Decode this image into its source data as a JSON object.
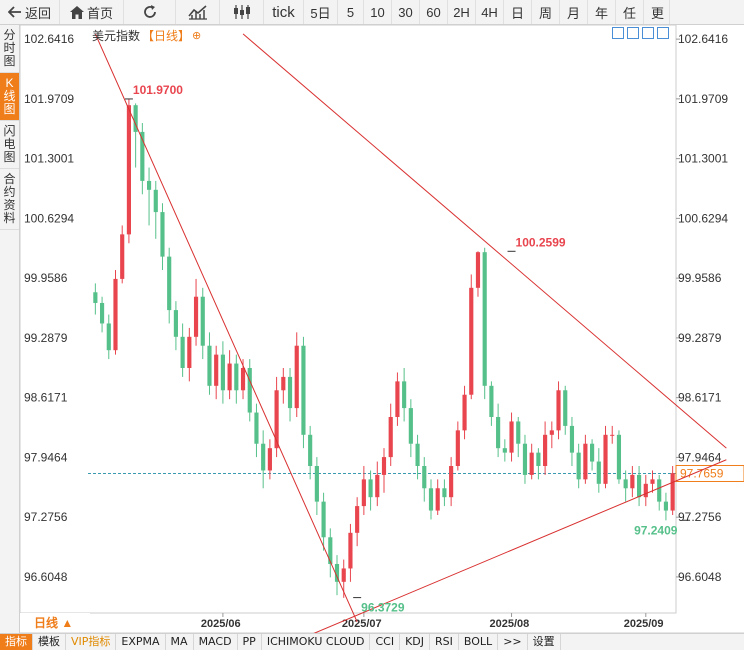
{
  "toolbar": {
    "back_label": "返回",
    "home_label": "首页",
    "tick_label": "tick",
    "periods": [
      "5日",
      "5",
      "10",
      "30",
      "60",
      "2H",
      "4H",
      "日",
      "周",
      "月",
      "年",
      "任"
    ],
    "more_label": "更"
  },
  "sidebar": {
    "items": [
      {
        "label": "分时图",
        "active": false
      },
      {
        "label": "K线图",
        "active": true
      },
      {
        "label": "闪电图",
        "active": false
      },
      {
        "label": "合约资料",
        "active": false
      }
    ]
  },
  "chart_header": {
    "name": "美元指数",
    "period": "【日线】",
    "settings_glyph": "⊕"
  },
  "period_selector": "日线 ▲",
  "bottom_tabs": [
    "指标",
    "模板",
    "VIP指标",
    "EXPMA",
    "MA",
    "MACD",
    "PP",
    "ICHIMOKU CLOUD",
    "CCI",
    "KDJ",
    "RSI",
    "BOLL",
    ">>",
    "设置"
  ],
  "colors": {
    "up": "#e8454e",
    "down": "#56c08a",
    "trendline": "#d93030",
    "accent": "#ef7d1a",
    "current_line": "#3a9bb0"
  },
  "chart_data": {
    "type": "candlestick",
    "ylim": [
      96.2,
      102.8
    ],
    "y_ticks": [
      "102.6416",
      "101.9709",
      "101.3001",
      "100.6294",
      "99.9586",
      "99.2879",
      "98.6171",
      "97.9464",
      "97.2756",
      "96.6048"
    ],
    "y_tick_values": [
      102.6416,
      101.9709,
      101.3001,
      100.6294,
      99.9586,
      99.2879,
      98.6171,
      97.9464,
      97.2756,
      96.6048
    ],
    "x_ticks": [
      "2025/06",
      "2025/07",
      "2025/08",
      "2025/09"
    ],
    "x_tick_index": [
      19,
      40,
      62,
      82
    ],
    "current_price": "97.7659",
    "annotations": [
      {
        "text": "101.9700",
        "index": 5,
        "value": 101.97
      },
      {
        "text": "100.2599",
        "index": 62,
        "value": 100.2599
      },
      {
        "text": "96.3729",
        "index": 39,
        "value": 96.3729
      },
      {
        "text": "97.2409",
        "index": 88,
        "value": 97.2409
      }
    ],
    "candles": [
      [
        99.8,
        99.68,
        99.9,
        99.55
      ],
      [
        99.68,
        99.45,
        99.75,
        99.35
      ],
      [
        99.45,
        99.15,
        99.55,
        99.05
      ],
      [
        99.15,
        99.95,
        100.05,
        99.1
      ],
      [
        99.95,
        100.45,
        100.55,
        99.9
      ],
      [
        100.45,
        101.9,
        101.97,
        100.35
      ],
      [
        101.9,
        101.6,
        101.92,
        101.2
      ],
      [
        101.6,
        101.05,
        101.7,
        100.9
      ],
      [
        101.05,
        100.95,
        101.2,
        100.55
      ],
      [
        100.95,
        100.7,
        101.05,
        100.4
      ],
      [
        100.7,
        100.2,
        100.8,
        100.05
      ],
      [
        100.2,
        99.6,
        100.3,
        99.45
      ],
      [
        99.6,
        99.3,
        99.7,
        99.15
      ],
      [
        99.3,
        98.95,
        99.45,
        98.85
      ],
      [
        98.95,
        99.3,
        99.4,
        98.8
      ],
      [
        99.3,
        99.75,
        99.95,
        99.2
      ],
      [
        99.75,
        99.2,
        99.85,
        99.05
      ],
      [
        99.2,
        98.75,
        99.35,
        98.65
      ],
      [
        98.75,
        99.1,
        99.2,
        98.6
      ],
      [
        99.1,
        98.7,
        99.25,
        98.55
      ],
      [
        98.7,
        99.0,
        99.15,
        98.6
      ],
      [
        99.0,
        98.7,
        99.1,
        98.55
      ],
      [
        98.7,
        98.95,
        99.05,
        98.6
      ],
      [
        98.95,
        98.45,
        99.05,
        98.35
      ],
      [
        98.45,
        98.1,
        98.55,
        97.95
      ],
      [
        98.1,
        97.8,
        98.25,
        97.6
      ],
      [
        97.8,
        98.05,
        98.15,
        97.7
      ],
      [
        98.05,
        98.7,
        98.85,
        97.95
      ],
      [
        98.7,
        98.85,
        98.95,
        98.55
      ],
      [
        98.85,
        98.5,
        98.95,
        98.35
      ],
      [
        98.5,
        99.2,
        99.35,
        98.4
      ],
      [
        99.2,
        98.2,
        99.3,
        98.05
      ],
      [
        98.2,
        97.85,
        98.3,
        97.7
      ],
      [
        97.85,
        97.45,
        97.95,
        97.3
      ],
      [
        97.45,
        97.05,
        97.55,
        96.9
      ],
      [
        97.05,
        96.75,
        97.15,
        96.6
      ],
      [
        96.75,
        96.55,
        96.85,
        96.4
      ],
      [
        96.55,
        96.7,
        96.8,
        96.37
      ],
      [
        96.7,
        97.1,
        97.2,
        96.55
      ],
      [
        97.1,
        97.4,
        97.5,
        96.95
      ],
      [
        97.4,
        97.7,
        97.85,
        97.3
      ],
      [
        97.7,
        97.5,
        97.8,
        97.35
      ],
      [
        97.5,
        97.75,
        97.9,
        97.4
      ],
      [
        97.75,
        97.95,
        98.05,
        97.55
      ],
      [
        97.95,
        98.4,
        98.55,
        97.85
      ],
      [
        98.4,
        98.8,
        98.9,
        98.3
      ],
      [
        98.8,
        98.5,
        98.95,
        98.35
      ],
      [
        98.5,
        98.1,
        98.6,
        97.95
      ],
      [
        98.1,
        97.85,
        98.2,
        97.7
      ],
      [
        97.85,
        97.6,
        97.95,
        97.45
      ],
      [
        97.6,
        97.35,
        97.7,
        97.25
      ],
      [
        97.35,
        97.6,
        97.7,
        97.3
      ],
      [
        97.6,
        97.5,
        97.7,
        97.4
      ],
      [
        97.5,
        97.85,
        97.95,
        97.4
      ],
      [
        97.85,
        98.25,
        98.35,
        97.8
      ],
      [
        98.25,
        98.65,
        98.75,
        98.15
      ],
      [
        98.65,
        99.85,
        100.0,
        98.6
      ],
      [
        99.85,
        100.25,
        100.26,
        99.75
      ],
      [
        100.25,
        98.75,
        100.3,
        98.6
      ],
      [
        98.75,
        98.4,
        98.8,
        98.3
      ],
      [
        98.4,
        98.05,
        98.55,
        97.95
      ],
      [
        98.05,
        98.0,
        98.15,
        97.9
      ],
      [
        98.0,
        98.35,
        98.45,
        97.9
      ],
      [
        98.35,
        98.1,
        98.4,
        97.95
      ],
      [
        98.1,
        97.75,
        98.2,
        97.65
      ],
      [
        97.75,
        98.0,
        98.1,
        97.7
      ],
      [
        98.0,
        97.85,
        98.05,
        97.7
      ],
      [
        97.85,
        98.2,
        98.35,
        97.75
      ],
      [
        98.2,
        98.25,
        98.35,
        98.05
      ],
      [
        98.25,
        98.7,
        98.8,
        98.15
      ],
      [
        98.7,
        98.3,
        98.75,
        98.2
      ],
      [
        98.3,
        98.0,
        98.4,
        97.85
      ],
      [
        98.0,
        97.7,
        98.1,
        97.6
      ],
      [
        97.7,
        98.1,
        98.2,
        97.65
      ],
      [
        98.1,
        97.9,
        98.15,
        97.8
      ],
      [
        97.9,
        97.65,
        98.05,
        97.55
      ],
      [
        97.65,
        98.2,
        98.3,
        97.6
      ],
      [
        98.2,
        98.2,
        98.3,
        98.1
      ],
      [
        98.2,
        97.7,
        98.25,
        97.65
      ],
      [
        97.7,
        97.6,
        97.8,
        97.45
      ],
      [
        97.6,
        97.75,
        97.85,
        97.5
      ],
      [
        97.75,
        97.5,
        97.85,
        97.4
      ],
      [
        97.5,
        97.65,
        97.75,
        97.4
      ],
      [
        97.65,
        97.7,
        97.8,
        97.55
      ],
      [
        97.7,
        97.45,
        97.75,
        97.35
      ],
      [
        97.45,
        97.35,
        97.55,
        97.24
      ],
      [
        97.35,
        97.77,
        97.85,
        97.3
      ]
    ],
    "trendlines": [
      {
        "from": [
          0,
          102.7
        ],
        "to": [
          39,
          96.1
        ]
      },
      {
        "from": [
          22,
          102.7
        ],
        "to": [
          94,
          98.05
        ]
      },
      {
        "from": [
          24,
          95.7
        ],
        "to": [
          94,
          97.92
        ]
      }
    ]
  }
}
